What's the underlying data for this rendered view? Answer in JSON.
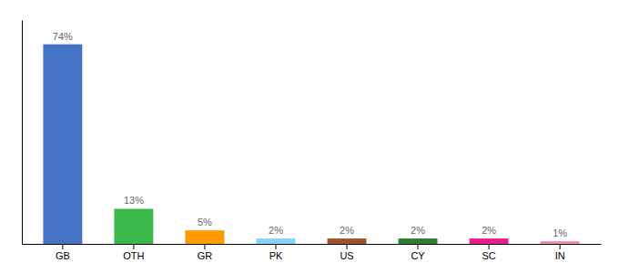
{
  "chart_data": {
    "type": "bar",
    "categories": [
      "GB",
      "OTH",
      "GR",
      "PK",
      "US",
      "CY",
      "SC",
      "IN"
    ],
    "values": [
      74,
      13,
      5,
      2,
      2,
      2,
      2,
      1
    ],
    "value_labels": [
      "74%",
      "13%",
      "5%",
      "2%",
      "2%",
      "2%",
      "2%",
      "1%"
    ],
    "colors": [
      "#4472C4",
      "#3CB84A",
      "#FF9900",
      "#81D4FA",
      "#A0522D",
      "#2E7D32",
      "#E91E8C",
      "#F48FB1"
    ],
    "ylim": [
      0,
      83
    ],
    "data_labels": true,
    "tick_labels": "x"
  }
}
